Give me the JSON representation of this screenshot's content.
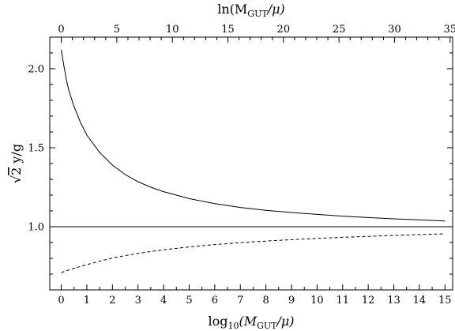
{
  "chart_data": {
    "type": "line",
    "xlabel_bottom": "log",
    "xlabel_bottom_sub": "10",
    "xlabel_bottom_rest": "(M",
    "xlabel_bottom_sub2": "GUT",
    "xlabel_bottom_end": "/μ)",
    "xlabel_top": "ln(M",
    "xlabel_top_sub": "GUT",
    "xlabel_top_end": "/μ)",
    "ylabel_root": "√",
    "ylabel_two": "2",
    "ylabel_rest": " y/g",
    "xlim": [
      -0.45,
      15.3
    ],
    "ylim": [
      0.6,
      2.2
    ],
    "top_axis_scale_factor": 2.302585,
    "x_ticks": [
      "0",
      "1",
      "2",
      "3",
      "4",
      "5",
      "6",
      "7",
      "8",
      "9",
      "10",
      "11",
      "12",
      "13",
      "14",
      "15"
    ],
    "top_ticks": [
      "0",
      "5",
      "10",
      "15",
      "20",
      "25",
      "30",
      "35"
    ],
    "y_ticks": [
      "1.0",
      "1.5",
      "2.0"
    ],
    "grid": false,
    "reference_line_y": 1.0,
    "series": [
      {
        "style": "solid",
        "x": [
          0,
          0.1,
          0.2,
          0.3,
          0.5,
          0.75,
          1,
          1.5,
          2,
          2.5,
          3,
          3.5,
          4,
          5,
          6,
          7,
          8,
          9,
          10,
          11,
          12,
          13,
          14,
          15
        ],
        "y": [
          2.12,
          2.02,
          1.93,
          1.86,
          1.76,
          1.66,
          1.58,
          1.47,
          1.39,
          1.33,
          1.285,
          1.25,
          1.222,
          1.178,
          1.146,
          1.122,
          1.104,
          1.09,
          1.078,
          1.067,
          1.058,
          1.05,
          1.043,
          1.036
        ]
      },
      {
        "style": "dashed",
        "x": [
          0,
          0.5,
          1,
          1.5,
          2,
          2.5,
          3,
          3.5,
          4,
          5,
          6,
          7,
          8,
          9,
          10,
          11,
          12,
          13,
          14,
          15
        ],
        "y": [
          0.71,
          0.737,
          0.76,
          0.782,
          0.801,
          0.817,
          0.831,
          0.843,
          0.854,
          0.872,
          0.887,
          0.899,
          0.909,
          0.918,
          0.926,
          0.933,
          0.939,
          0.945,
          0.95,
          0.955
        ]
      }
    ]
  }
}
